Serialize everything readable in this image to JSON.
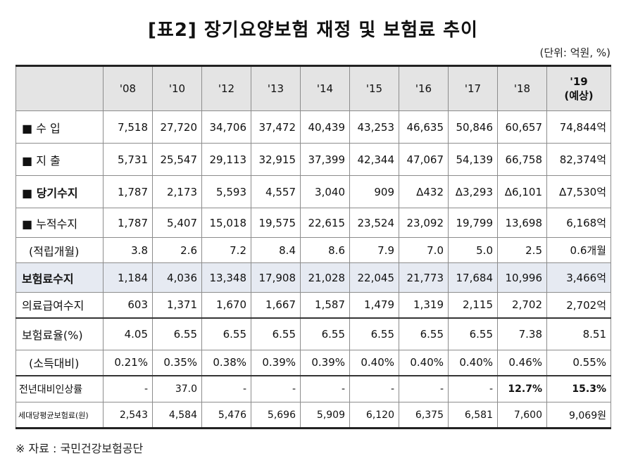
{
  "title": "[표2]  장기요양보험 재정 및 보험료 추이",
  "unit": "(단위: 억원, %)",
  "source": "※ 자료 : 국민건강보험공단",
  "columns": [
    "'08",
    "'10",
    "'12",
    "'13",
    "'14",
    "'15",
    "'16",
    "'17",
    "'18",
    "'19"
  ],
  "last_col_sub": "(예상)",
  "rows": [
    {
      "label": "■ 수     입",
      "values": [
        "7,518",
        "27,720",
        "34,706",
        "37,472",
        "40,439",
        "43,253",
        "46,635",
        "50,846",
        "60,657",
        "74,844억"
      ]
    },
    {
      "label": "■ 지     출",
      "values": [
        "5,731",
        "25,547",
        "29,113",
        "32,915",
        "37,399",
        "42,344",
        "47,067",
        "54,139",
        "66,758",
        "82,374억"
      ]
    },
    {
      "label": "■ 당기수지",
      "values": [
        "1,787",
        "2,173",
        "5,593",
        "4,557",
        "3,040",
        "909",
        "Δ432",
        "Δ3,293",
        "Δ6,101",
        "Δ7,530억"
      ]
    },
    {
      "label": "■ 누적수지",
      "values": [
        "1,787",
        "5,407",
        "15,018",
        "19,575",
        "22,615",
        "23,524",
        "23,092",
        "19,799",
        "13,698",
        "6,168억"
      ]
    },
    {
      "label": "(적립개월)",
      "values": [
        "3.8",
        "2.6",
        "7.2",
        "8.4",
        "8.6",
        "7.9",
        "7.0",
        "5.0",
        "2.5",
        "0.6개월"
      ]
    },
    {
      "label": "보험료수지",
      "values": [
        "1,184",
        "4,036",
        "13,348",
        "17,908",
        "21,028",
        "22,045",
        "21,773",
        "17,684",
        "10,996",
        "3,466억"
      ]
    },
    {
      "label": "의료급여수지",
      "values": [
        "603",
        "1,371",
        "1,670",
        "1,667",
        "1,587",
        "1,479",
        "1,319",
        "2,115",
        "2,702",
        "2,702억"
      ]
    },
    {
      "label": "보험료율(%)",
      "values": [
        "4.05",
        "6.55",
        "6.55",
        "6.55",
        "6.55",
        "6.55",
        "6.55",
        "6.55",
        "7.38",
        "8.51"
      ]
    },
    {
      "label": "(소득대비)",
      "values": [
        "0.21%",
        "0.35%",
        "0.38%",
        "0.39%",
        "0.39%",
        "0.40%",
        "0.40%",
        "0.40%",
        "0.46%",
        "0.55%"
      ]
    },
    {
      "label": "전년대비인상률",
      "values": [
        "-",
        "37.0",
        "-",
        "-",
        "-",
        "-",
        "-",
        "-",
        "12.7%",
        "15.3%"
      ]
    },
    {
      "label": "세대당평균보험료(원)",
      "values": [
        "2,543",
        "4,584",
        "5,476",
        "5,696",
        "5,909",
        "6,120",
        "6,375",
        "6,581",
        "7,600",
        "9,069원"
      ]
    }
  ]
}
